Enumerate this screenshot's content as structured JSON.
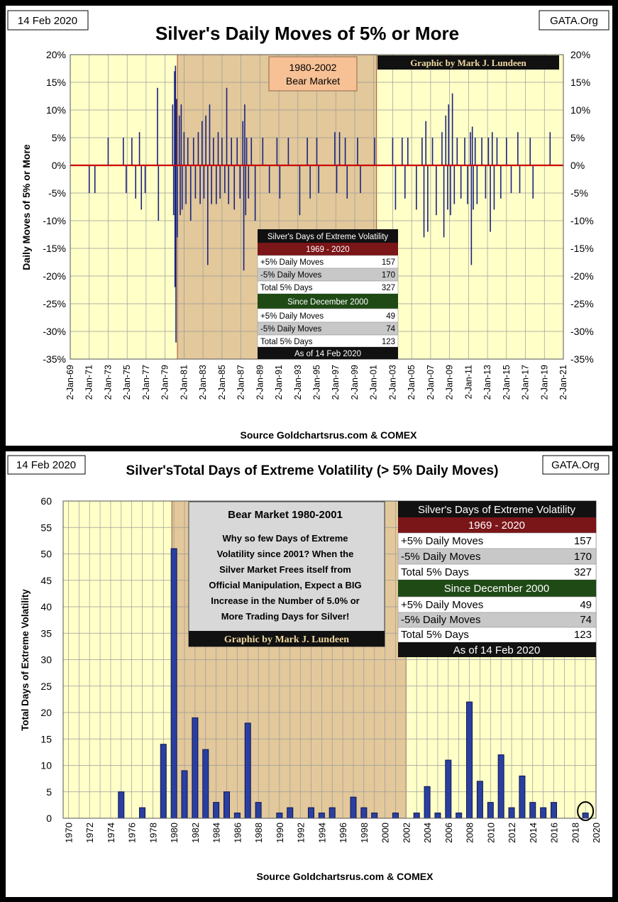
{
  "top": {
    "date_label": "14 Feb 2020",
    "site_label": "GATA.Org",
    "title": "Silver's Daily Moves of 5% or More",
    "ylabel": "Daily  Moves  of  5%  or  More",
    "source": "Source Goldchartsrus.com & COMEX",
    "credit": "Graphic by Mark J. Lundeen",
    "bear_label_1": "1980-2002",
    "bear_label_2": "Bear Market",
    "yticks": [
      "20%",
      "15%",
      "10%",
      "5%",
      "0%",
      "-5%",
      "-10%",
      "-15%",
      "-20%",
      "-25%",
      "-30%",
      "-35%"
    ],
    "xticks": [
      "2-Jan-69",
      "2-Jan-71",
      "2-Jan-73",
      "2-Jan-75",
      "2-Jan-77",
      "2-Jan-79",
      "2-Jan-81",
      "2-Jan-83",
      "2-Jan-85",
      "2-Jan-87",
      "2-Jan-89",
      "2-Jan-91",
      "2-Jan-93",
      "2-Jan-95",
      "2-Jan-97",
      "2-Jan-99",
      "2-Jan-01",
      "2-Jan-03",
      "2-Jan-05",
      "2-Jan-07",
      "2-Jan-09",
      "2-Jan-11",
      "2-Jan-13",
      "2-Jan-15",
      "2-Jan-17",
      "2-Jan-19",
      "2-Jan-21"
    ],
    "table": {
      "header": "Silver's Days of Extreme Volatility",
      "period1": "1969 - 2020",
      "rows1": [
        [
          "+5% Daily Moves",
          "157"
        ],
        [
          "-5% Daily Moves",
          "170"
        ],
        [
          "Total 5% Days",
          "327"
        ]
      ],
      "period2": "Since December 2000",
      "rows2": [
        [
          "+5% Daily Moves",
          "49"
        ],
        [
          "-5% Daily Moves",
          "74"
        ],
        [
          "Total 5% Days",
          "123"
        ]
      ],
      "footer": "As of 14 Feb 2020"
    }
  },
  "bottom": {
    "date_label": "14 Feb 2020",
    "site_label": "GATA.Org",
    "title": "Silver'sTotal Days of Extreme Volatility (> 5% Daily Moves)",
    "ylabel": "Total Days of Extreme Volatility",
    "source": "Source Goldchartsrus.com & COMEX",
    "credit": "Graphic by Mark J. Lundeen",
    "note_title": "Bear Market 1980-2001",
    "note_lines": [
      "Why so few Days of Extreme",
      "Volatility since 2001?  When the",
      "Silver Market Frees itself from",
      "Official Manipulation, Expect a BIG",
      "Increase in the Number of 5.0% or",
      "More Trading Days for Silver!"
    ],
    "table": {
      "header": "Silver's Days of Extreme Volatility",
      "period1": "1969 - 2020",
      "rows1": [
        [
          "+5% Daily Moves",
          "157"
        ],
        [
          "-5% Daily Moves",
          "170"
        ],
        [
          "Total 5% Days",
          "327"
        ]
      ],
      "period2": "Since December 2000",
      "rows2": [
        [
          "+5% Daily Moves",
          "49"
        ],
        [
          "-5% Daily Moves",
          "74"
        ],
        [
          "Total 5% Days",
          "123"
        ]
      ],
      "footer": "As of 14 Feb 2020"
    }
  },
  "colors": {
    "bar": "#1a237e",
    "bg": "#ffffc8",
    "bear": "#e2c89a",
    "zero": "#cc0000",
    "maroon": "#7a1518",
    "green": "#1f4a16"
  },
  "chart_data": [
    {
      "type": "bar",
      "title": "Silver's Daily Moves of 5% or More",
      "xlabel": "",
      "ylabel": "Daily Moves of 5% or More",
      "ylim": [
        -35,
        20
      ],
      "xlim": [
        1969,
        2021
      ],
      "shaded_region": {
        "label": "1980-2002 Bear Market",
        "from": 1980.3,
        "to": 2001.3
      },
      "moves": [
        [
          1971.0,
          -5
        ],
        [
          1971.6,
          -5
        ],
        [
          1973.0,
          5
        ],
        [
          1974.6,
          5
        ],
        [
          1974.9,
          -5
        ],
        [
          1975.5,
          5
        ],
        [
          1975.9,
          -6
        ],
        [
          1976.3,
          6
        ],
        [
          1976.5,
          -8
        ],
        [
          1976.9,
          -5
        ],
        [
          1978.2,
          14
        ],
        [
          1978.3,
          -10
        ],
        [
          1979.8,
          11
        ],
        [
          1979.9,
          -9
        ],
        [
          1980.0,
          17
        ],
        [
          1980.05,
          -22
        ],
        [
          1980.1,
          18
        ],
        [
          1980.15,
          -32
        ],
        [
          1980.2,
          12
        ],
        [
          1980.3,
          -13
        ],
        [
          1980.5,
          9
        ],
        [
          1980.6,
          -9
        ],
        [
          1980.7,
          11
        ],
        [
          1980.8,
          -8
        ],
        [
          1981.0,
          6
        ],
        [
          1981.2,
          -7
        ],
        [
          1981.4,
          5
        ],
        [
          1981.7,
          -10
        ],
        [
          1982.0,
          5
        ],
        [
          1982.2,
          -6
        ],
        [
          1982.5,
          6
        ],
        [
          1982.7,
          -7
        ],
        [
          1982.9,
          8
        ],
        [
          1983.1,
          -6
        ],
        [
          1983.3,
          9
        ],
        [
          1983.5,
          -18
        ],
        [
          1983.7,
          11
        ],
        [
          1983.9,
          -7
        ],
        [
          1984.1,
          5
        ],
        [
          1984.4,
          -7
        ],
        [
          1984.6,
          6
        ],
        [
          1984.8,
          -6
        ],
        [
          1985.0,
          5
        ],
        [
          1985.3,
          -5
        ],
        [
          1985.5,
          14
        ],
        [
          1985.7,
          -7
        ],
        [
          1986.0,
          5
        ],
        [
          1986.3,
          -8
        ],
        [
          1986.6,
          5
        ],
        [
          1986.9,
          -6
        ],
        [
          1987.2,
          8
        ],
        [
          1987.3,
          -19
        ],
        [
          1987.4,
          11
        ],
        [
          1987.5,
          -9
        ],
        [
          1987.6,
          5
        ],
        [
          1987.8,
          -6
        ],
        [
          1988.1,
          5
        ],
        [
          1988.5,
          -10
        ],
        [
          1989.3,
          5
        ],
        [
          1990.0,
          -5
        ],
        [
          1990.8,
          5
        ],
        [
          1991.1,
          -6
        ],
        [
          1992.0,
          5
        ],
        [
          1993.2,
          -9
        ],
        [
          1994.0,
          5
        ],
        [
          1994.3,
          -6
        ],
        [
          1995.0,
          5
        ],
        [
          1995.2,
          -5
        ],
        [
          1996.9,
          6
        ],
        [
          1997.1,
          -5
        ],
        [
          1997.4,
          6
        ],
        [
          1998.0,
          5
        ],
        [
          1998.2,
          -6
        ],
        [
          1999.3,
          5
        ],
        [
          1999.6,
          -5
        ],
        [
          2001.1,
          5
        ],
        [
          2003.0,
          5
        ],
        [
          2003.3,
          -8
        ],
        [
          2004.0,
          5
        ],
        [
          2004.3,
          -6
        ],
        [
          2004.6,
          5
        ],
        [
          2005.5,
          -8
        ],
        [
          2006.1,
          5
        ],
        [
          2006.3,
          -13
        ],
        [
          2006.5,
          8
        ],
        [
          2006.7,
          -12
        ],
        [
          2007.2,
          5
        ],
        [
          2007.6,
          -9
        ],
        [
          2008.2,
          6
        ],
        [
          2008.4,
          -13
        ],
        [
          2008.6,
          9
        ],
        [
          2008.8,
          -8
        ],
        [
          2008.9,
          11
        ],
        [
          2009.1,
          -9
        ],
        [
          2009.3,
          13
        ],
        [
          2009.5,
          -7
        ],
        [
          2009.8,
          5
        ],
        [
          2010.2,
          -6
        ],
        [
          2010.6,
          5
        ],
        [
          2010.9,
          -7
        ],
        [
          2011.2,
          6
        ],
        [
          2011.3,
          -18
        ],
        [
          2011.4,
          7
        ],
        [
          2011.5,
          -8
        ],
        [
          2011.7,
          5
        ],
        [
          2011.9,
          -7
        ],
        [
          2012.4,
          5
        ],
        [
          2012.8,
          -6
        ],
        [
          2013.1,
          5
        ],
        [
          2013.3,
          -12
        ],
        [
          2013.5,
          6
        ],
        [
          2013.7,
          -8
        ],
        [
          2014.0,
          5
        ],
        [
          2014.4,
          -6
        ],
        [
          2015.0,
          5
        ],
        [
          2015.5,
          -5
        ],
        [
          2016.2,
          6
        ],
        [
          2016.4,
          -5
        ],
        [
          2017.5,
          5
        ],
        [
          2017.8,
          -6
        ],
        [
          2019.6,
          6
        ]
      ]
    },
    {
      "type": "bar",
      "title": "Silver'sTotal Days of Extreme Volatility (> 5% Daily Moves)",
      "xlabel": "",
      "ylabel": "Total Days of Extreme Volatility",
      "ylim": [
        0,
        60
      ],
      "yticks": [
        0,
        5,
        10,
        15,
        20,
        25,
        30,
        35,
        40,
        45,
        50,
        55,
        60
      ],
      "xlim": [
        1970,
        2020
      ],
      "xtick_labels": [
        "1970",
        "1972",
        "1974",
        "1976",
        "1978",
        "1980",
        "1982",
        "1984",
        "1986",
        "1988",
        "1990",
        "1992",
        "1994",
        "1996",
        "1998",
        "2000",
        "2002",
        "2004",
        "2006",
        "2008",
        "2010",
        "2012",
        "2014",
        "2016",
        "2018",
        "2020"
      ],
      "shaded_region": {
        "label": "Bear Market 1980-2001",
        "from": 1980.3,
        "to": 2001.5
      },
      "categories": [
        1975,
        1977,
        1979,
        1980,
        1981,
        1982,
        1983,
        1984,
        1985,
        1986,
        1987,
        1988,
        1990,
        1991,
        1993,
        1994,
        1995,
        1997,
        1998,
        1999,
        2001,
        2003,
        2004,
        2005,
        2006,
        2007,
        2008,
        2009,
        2010,
        2011,
        2012,
        2013,
        2014,
        2015,
        2016,
        2019
      ],
      "values": [
        5,
        2,
        14,
        51,
        9,
        19,
        13,
        3,
        5,
        1,
        18,
        3,
        1,
        2,
        2,
        1,
        2,
        4,
        2,
        1,
        1,
        1,
        6,
        1,
        11,
        1,
        22,
        7,
        3,
        12,
        2,
        8,
        3,
        2,
        3,
        1
      ],
      "highlight": 2019
    }
  ]
}
